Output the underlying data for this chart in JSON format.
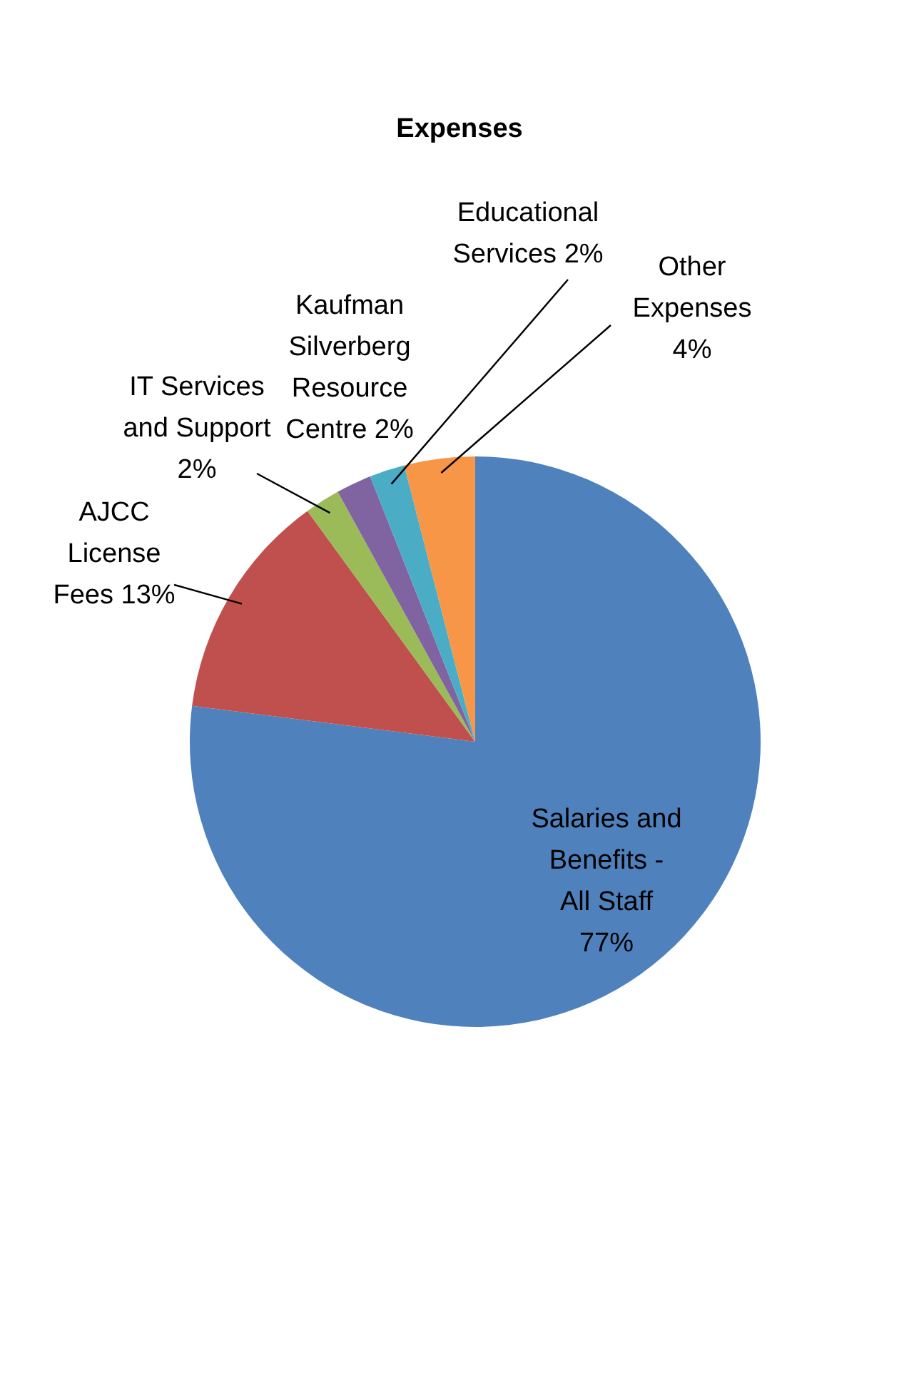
{
  "chart_data": {
    "type": "pie",
    "title": "Expenses",
    "categories": [
      "Salaries and Benefits - All Staff",
      "AJCC License Fees",
      "IT Services and Support",
      "Kaufman Silverberg Resource Centre",
      "Educational Services",
      "Other Expenses"
    ],
    "values": [
      77,
      13,
      2,
      2,
      2,
      4
    ],
    "value_labels": [
      "77%",
      "13%",
      "2%",
      "2%",
      "2%",
      "4%"
    ],
    "colors": [
      "#4f81bd",
      "#c0504d",
      "#9bbb59",
      "#8064a2",
      "#4bacc6",
      "#f79646"
    ],
    "data_labels": true,
    "legend": false
  }
}
